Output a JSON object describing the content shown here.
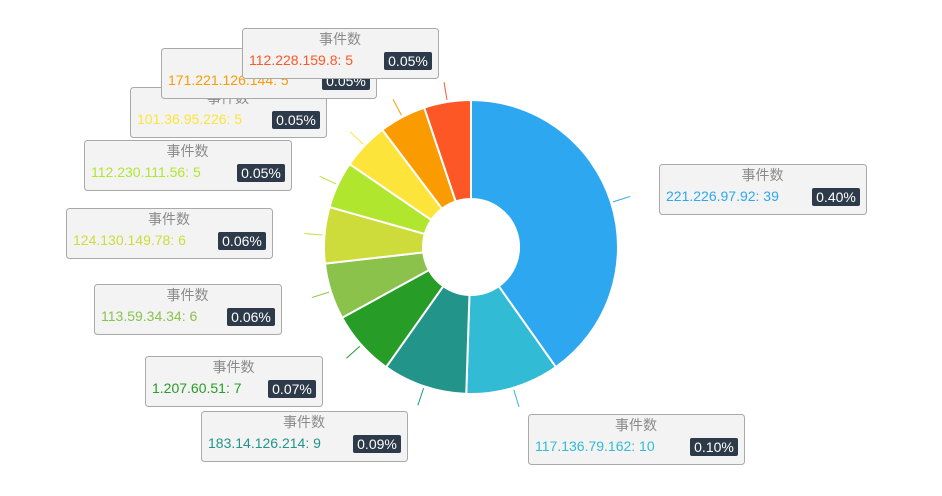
{
  "chart_data": {
    "type": "pie",
    "donut": true,
    "label_title": "事件数",
    "slices": [
      {
        "name": "221.226.97.92",
        "value": 39,
        "percent": "0.40%",
        "color": "#2ea7f1"
      },
      {
        "name": "117.136.79.162",
        "value": 10,
        "percent": "0.10%",
        "color": "#31bbd4"
      },
      {
        "name": "183.14.126.214",
        "value": 9,
        "percent": "0.09%",
        "color": "#23948a"
      },
      {
        "name": "1.207.60.51",
        "value": 7,
        "percent": "0.07%",
        "color": "#279c26"
      },
      {
        "name": "113.59.34.34",
        "value": 6,
        "percent": "0.06%",
        "color": "#8bc24b"
      },
      {
        "name": "124.130.149.78",
        "value": 6,
        "percent": "0.06%",
        "color": "#cddc3a"
      },
      {
        "name": "112.230.111.56",
        "value": 5,
        "percent": "0.05%",
        "color": "#b1e62e"
      },
      {
        "name": "101.36.95.226",
        "value": 5,
        "percent": "0.05%",
        "color": "#fde43b"
      },
      {
        "name": "171.221.126.144",
        "value": 5,
        "percent": "0.05%",
        "color": "#fb9b02"
      },
      {
        "name": "112.228.159.8",
        "value": 5,
        "percent": "0.05%",
        "color": "#fd5726"
      }
    ]
  }
}
